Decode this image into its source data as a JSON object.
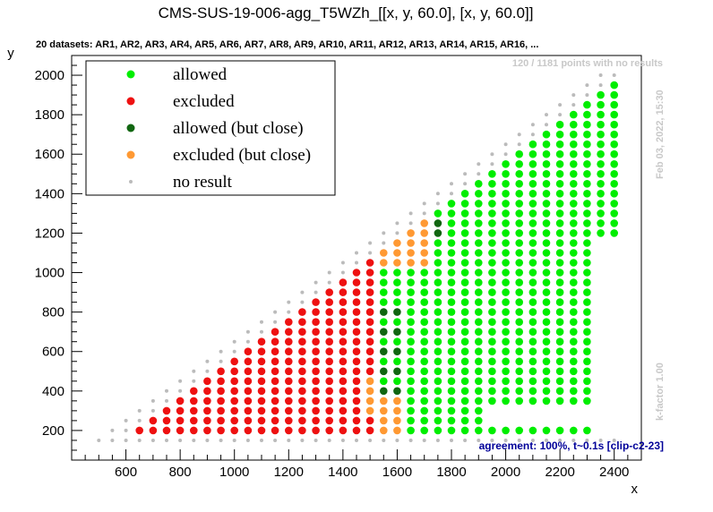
{
  "chart_data": {
    "type": "scatter",
    "title": "CMS-SUS-19-006-agg_T5WZh_[[x, y, 60.0], [x, y, 60.0]]",
    "subtitle": "20 datasets: AR1, AR2, AR3, AR4, AR5, AR6, AR7, AR8, AR9, AR10, AR11, AR12, AR13, AR14, AR15, AR16,  ...",
    "xlabel": "x",
    "ylabel": "y",
    "xlim": [
      400,
      2500
    ],
    "ylim": [
      50,
      2100
    ],
    "x_ticks": [
      "600",
      "800",
      "1000",
      "1200",
      "1400",
      "1600",
      "1800",
      "2000",
      "2200",
      "2400"
    ],
    "y_ticks": [
      "200",
      "400",
      "600",
      "800",
      "1000",
      "1200",
      "1400",
      "1600",
      "1800",
      "2000"
    ],
    "grid": false,
    "legend_placement": "top-left",
    "legend": [
      {
        "label": "allowed",
        "color": "#00ee00"
      },
      {
        "label": "excluded",
        "color": "#ee1111"
      },
      {
        "label": "allowed (but close)",
        "color": "#116611"
      },
      {
        "label": "excluded (but close)",
        "color": "#ff9933"
      },
      {
        "label": "no result",
        "color": "#bbbbbb"
      }
    ],
    "annotations": {
      "points_info": "120 / 1181 points with no results",
      "timestamp": "Feb 03, 2022, 15:30",
      "k_factor": "k-factor 1.00",
      "agreement": "agreement: 100%, t~0.1s [clip-c2-23]"
    },
    "regions": {
      "grid_spacing_x": 50,
      "grid_spacing_y": 50,
      "x_start": 500,
      "x_end": 2400,
      "y_no_result_below": 200,
      "excluded_boundary_x": 1500,
      "allowed_max_x_upper": 2300,
      "diagonal_slope": 1.0,
      "diagonal_offset": 400
    }
  }
}
